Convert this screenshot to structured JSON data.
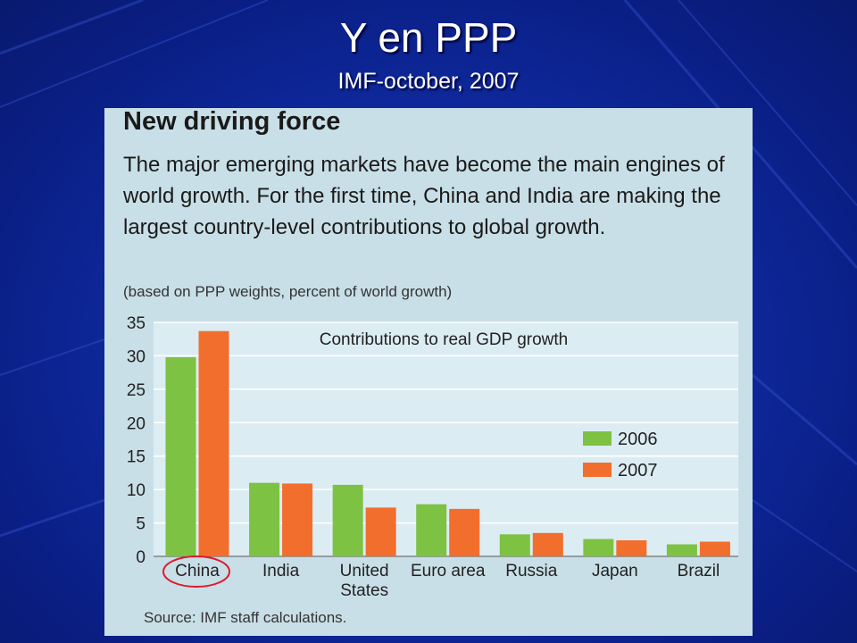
{
  "slide": {
    "title": "Y en PPP",
    "subtitle": "IMF-october, 2007"
  },
  "figure": {
    "heading": "New driving force",
    "description": "The major emerging markets have become the main engines of world growth. For the first time, China and India are making the largest country-level contributions to global growth.",
    "note": "(based on PPP weights, percent of world growth)",
    "source": "Source: IMF staff calculations."
  },
  "colors": {
    "series_2006": "#7dc242",
    "series_2007": "#f26e2c",
    "plot_background": "#dcecf3",
    "figure_background": "#c9dfe7",
    "highlight_circle": "#e0182d"
  },
  "chart_data": {
    "type": "bar",
    "title": "Contributions to real GDP growth",
    "categories": [
      "China",
      "India",
      "United States",
      "Euro area",
      "Russia",
      "Japan",
      "Brazil"
    ],
    "series": [
      {
        "name": "2006",
        "values": [
          29.8,
          11.0,
          10.7,
          7.8,
          3.3,
          2.6,
          1.8
        ]
      },
      {
        "name": "2007",
        "values": [
          33.7,
          10.9,
          7.3,
          7.1,
          3.5,
          2.4,
          2.2
        ]
      }
    ],
    "ylim": [
      0,
      35
    ],
    "yticks": [
      0,
      5,
      10,
      15,
      20,
      25,
      30,
      35
    ],
    "grid": true,
    "legend": "right",
    "highlighted_category": "China"
  }
}
